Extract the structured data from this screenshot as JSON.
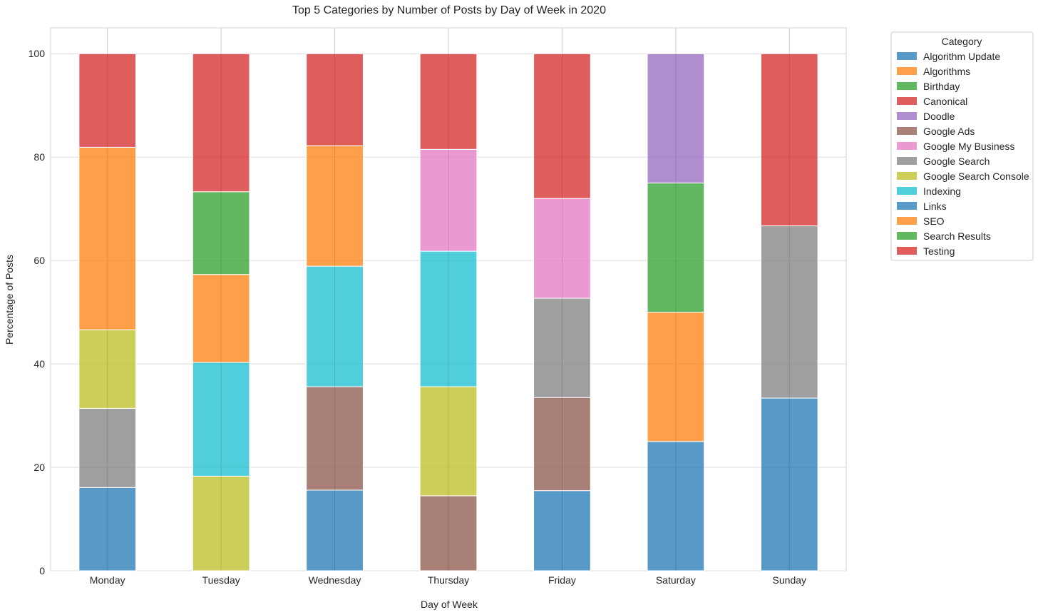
{
  "chart_data": {
    "type": "bar",
    "stacked": true,
    "title": "Top 5 Categories by Number of Posts by Day of Week in 2020",
    "xlabel": "Day of Week",
    "ylabel": "Percentage of Posts",
    "ylim": [
      0,
      105
    ],
    "yticks": [
      0,
      20,
      40,
      60,
      80,
      100
    ],
    "categories": [
      "Monday",
      "Tuesday",
      "Wednesday",
      "Thursday",
      "Friday",
      "Saturday",
      "Sunday"
    ],
    "legend_title": "Category",
    "legend_position": "outside-top-right",
    "grid": true,
    "series": [
      {
        "name": "Algorithm Update",
        "color": "#1f77b4",
        "values": [
          0,
          0,
          0,
          0,
          0,
          0,
          0
        ]
      },
      {
        "name": "Algorithms",
        "color": "#ff7f0e",
        "values": [
          0,
          0,
          0,
          0,
          0,
          0,
          0
        ]
      },
      {
        "name": "Birthday",
        "color": "#2ca02c",
        "values": [
          0,
          0,
          0,
          0,
          0,
          0,
          0
        ]
      },
      {
        "name": "Canonical",
        "color": "#d62728",
        "values": [
          0,
          0,
          0,
          0,
          0,
          0,
          0
        ]
      },
      {
        "name": "Doodle",
        "color": "#9467bd",
        "values": [
          0,
          0,
          0,
          0,
          0,
          25.0,
          0
        ]
      },
      {
        "name": "Google Ads",
        "color": "#8c564b",
        "values": [
          0,
          0,
          20.0,
          14.5,
          18.0,
          0,
          0
        ]
      },
      {
        "name": "Google My Business",
        "color": "#e377c2",
        "values": [
          0,
          0,
          0,
          19.7,
          19.3,
          0,
          0
        ]
      },
      {
        "name": "Google Search",
        "color": "#7f7f7f",
        "values": [
          15.3,
          0,
          0,
          0,
          19.2,
          0,
          33.3
        ]
      },
      {
        "name": "Google Search Console",
        "color": "#bcbd22",
        "values": [
          15.2,
          18.3,
          0,
          21.1,
          0,
          0,
          0
        ]
      },
      {
        "name": "Indexing",
        "color": "#17becf",
        "values": [
          0,
          22.0,
          23.3,
          26.2,
          0,
          0,
          0
        ]
      },
      {
        "name": "Links",
        "color": "#1f77b4",
        "values": [
          16.1,
          0,
          15.6,
          0,
          15.5,
          25.0,
          33.4
        ]
      },
      {
        "name": "SEO",
        "color": "#ff7f0e",
        "values": [
          35.3,
          17.0,
          23.3,
          0,
          0,
          25.0,
          0
        ]
      },
      {
        "name": "Search Results",
        "color": "#2ca02c",
        "values": [
          0,
          16.0,
          0,
          0,
          0,
          25.0,
          0
        ]
      },
      {
        "name": "Testing",
        "color": "#d62728",
        "values": [
          18.1,
          26.7,
          17.8,
          18.5,
          28.0,
          0,
          33.3
        ]
      }
    ],
    "stack_order": [
      "Links",
      "Google Ads",
      "Google Search",
      "Google Search Console",
      "Indexing",
      "Google My Business",
      "SEO",
      "Search Results",
      "Doodle",
      "Testing"
    ]
  }
}
